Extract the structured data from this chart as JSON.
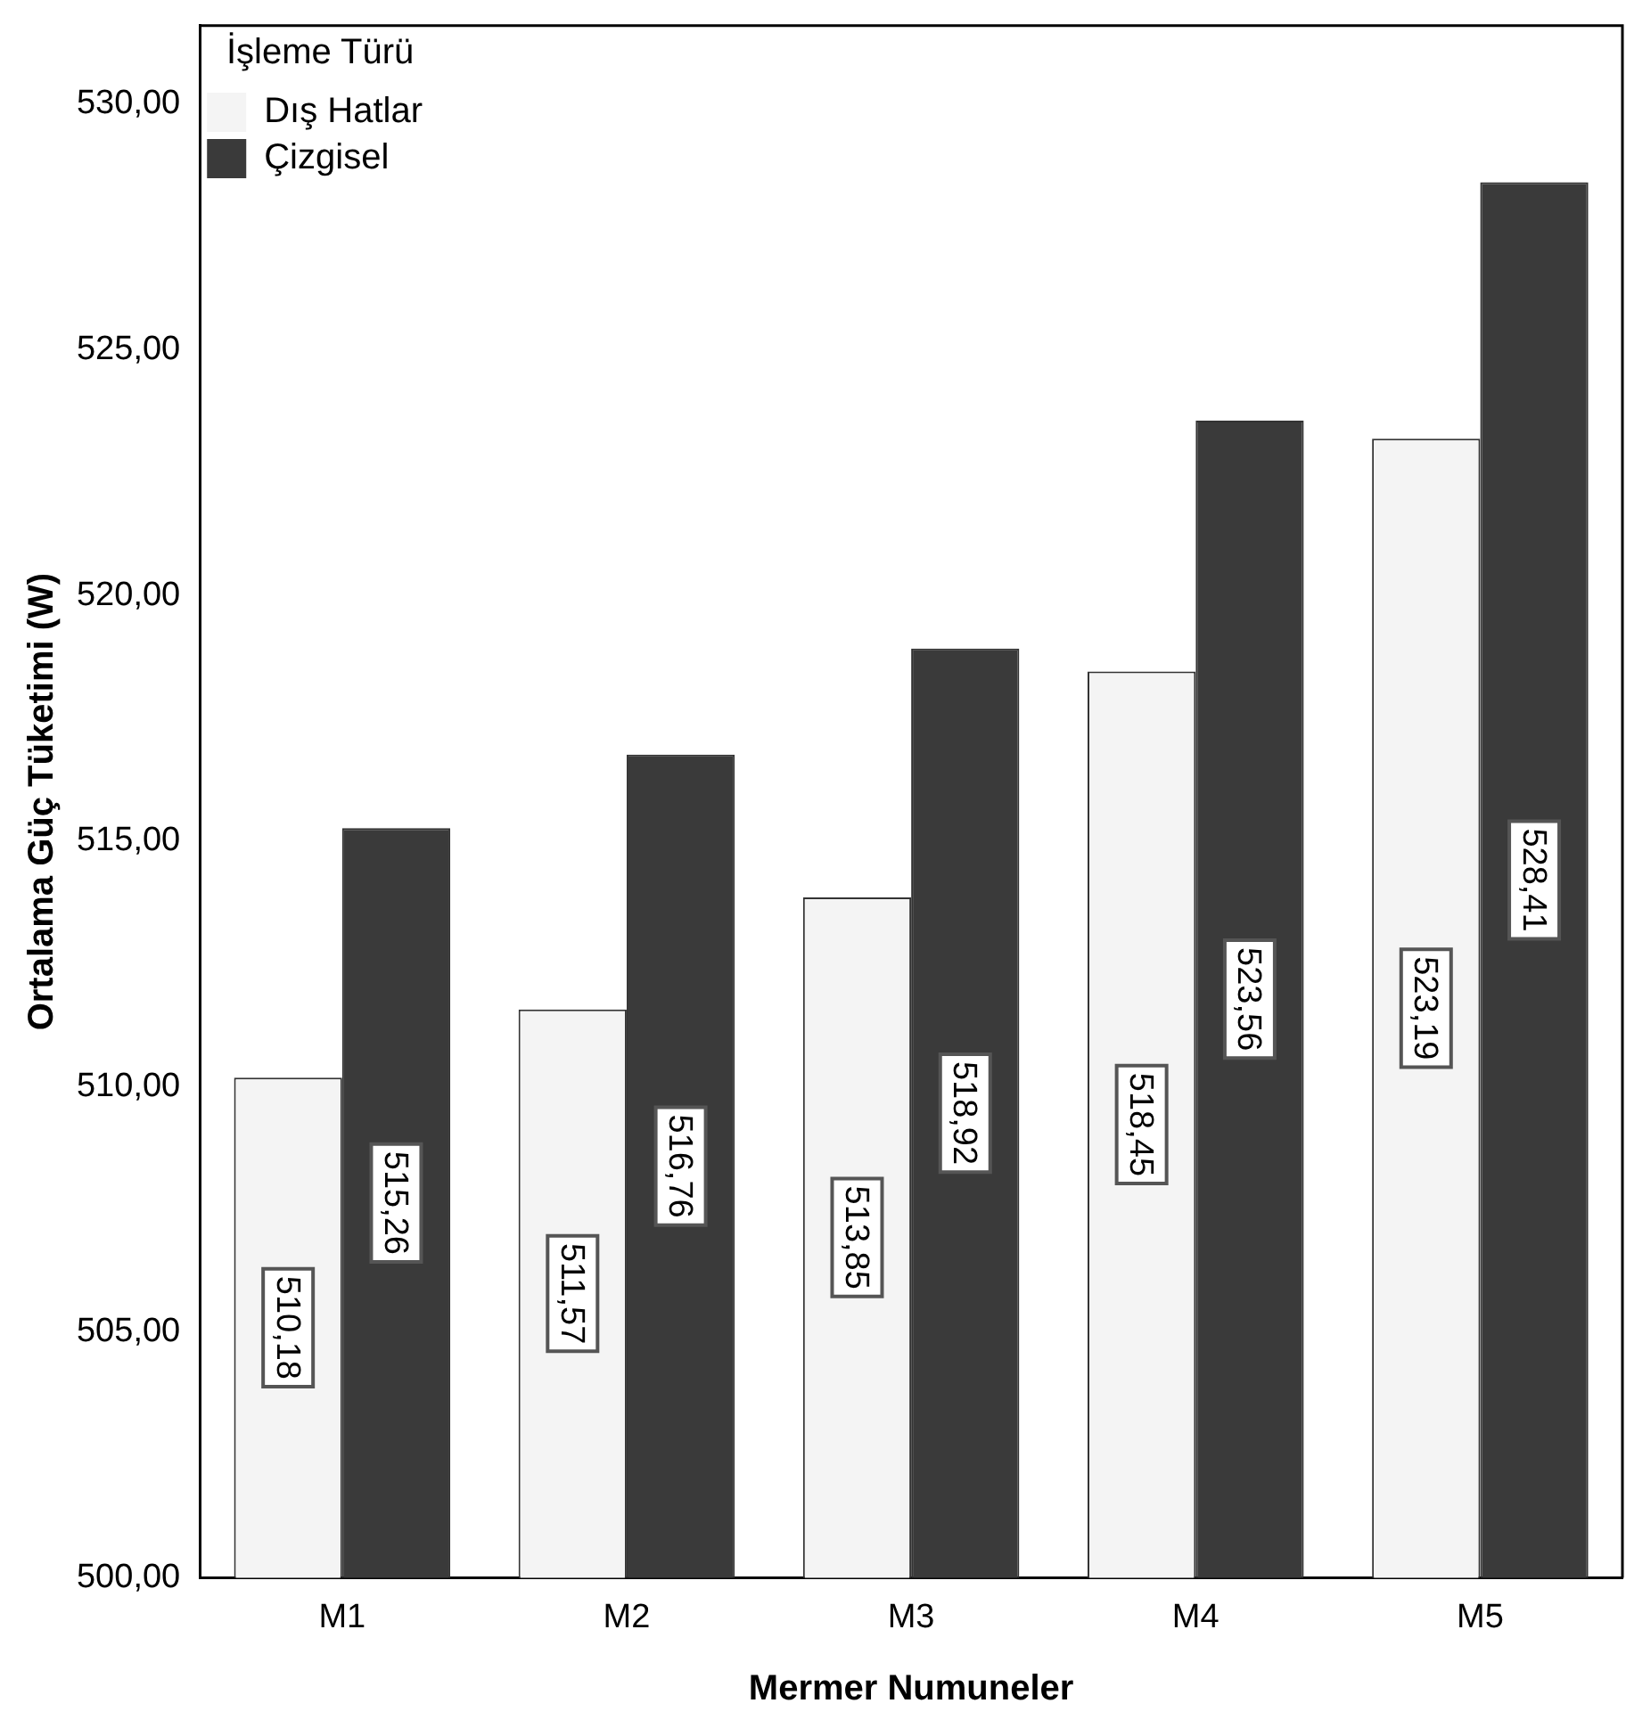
{
  "chart_data": {
    "type": "bar",
    "xlabel": "Mermer Numuneler",
    "ylabel": "Ortalama Güç Tüketimi (W)",
    "legend_title": "İşleme Türü",
    "categories": [
      "M1",
      "M2",
      "M3",
      "M4",
      "M5"
    ],
    "series": [
      {
        "name": "Dış Hatlar",
        "color": "#f4f4f4",
        "values": [
          510.18,
          511.57,
          513.85,
          518.45,
          523.19
        ],
        "value_labels": [
          "510,18",
          "511,57",
          "513,85",
          "518,45",
          "523,19"
        ]
      },
      {
        "name": "Çizgisel",
        "color": "#3a3a3a",
        "values": [
          515.26,
          516.76,
          518.92,
          523.56,
          528.41
        ],
        "value_labels": [
          "515,26",
          "516,76",
          "518,92",
          "523,56",
          "528,41"
        ]
      }
    ],
    "ylim": [
      500,
      531.6
    ],
    "yticks": [
      {
        "value": 500,
        "label": "500,00"
      },
      {
        "value": 505,
        "label": "505,00"
      },
      {
        "value": 510,
        "label": "510,00"
      },
      {
        "value": 515,
        "label": "515,00"
      },
      {
        "value": 520,
        "label": "520,00"
      },
      {
        "value": 525,
        "label": "525,00"
      },
      {
        "value": 530,
        "label": "530,00"
      }
    ],
    "grid": false,
    "legend": "top left"
  }
}
